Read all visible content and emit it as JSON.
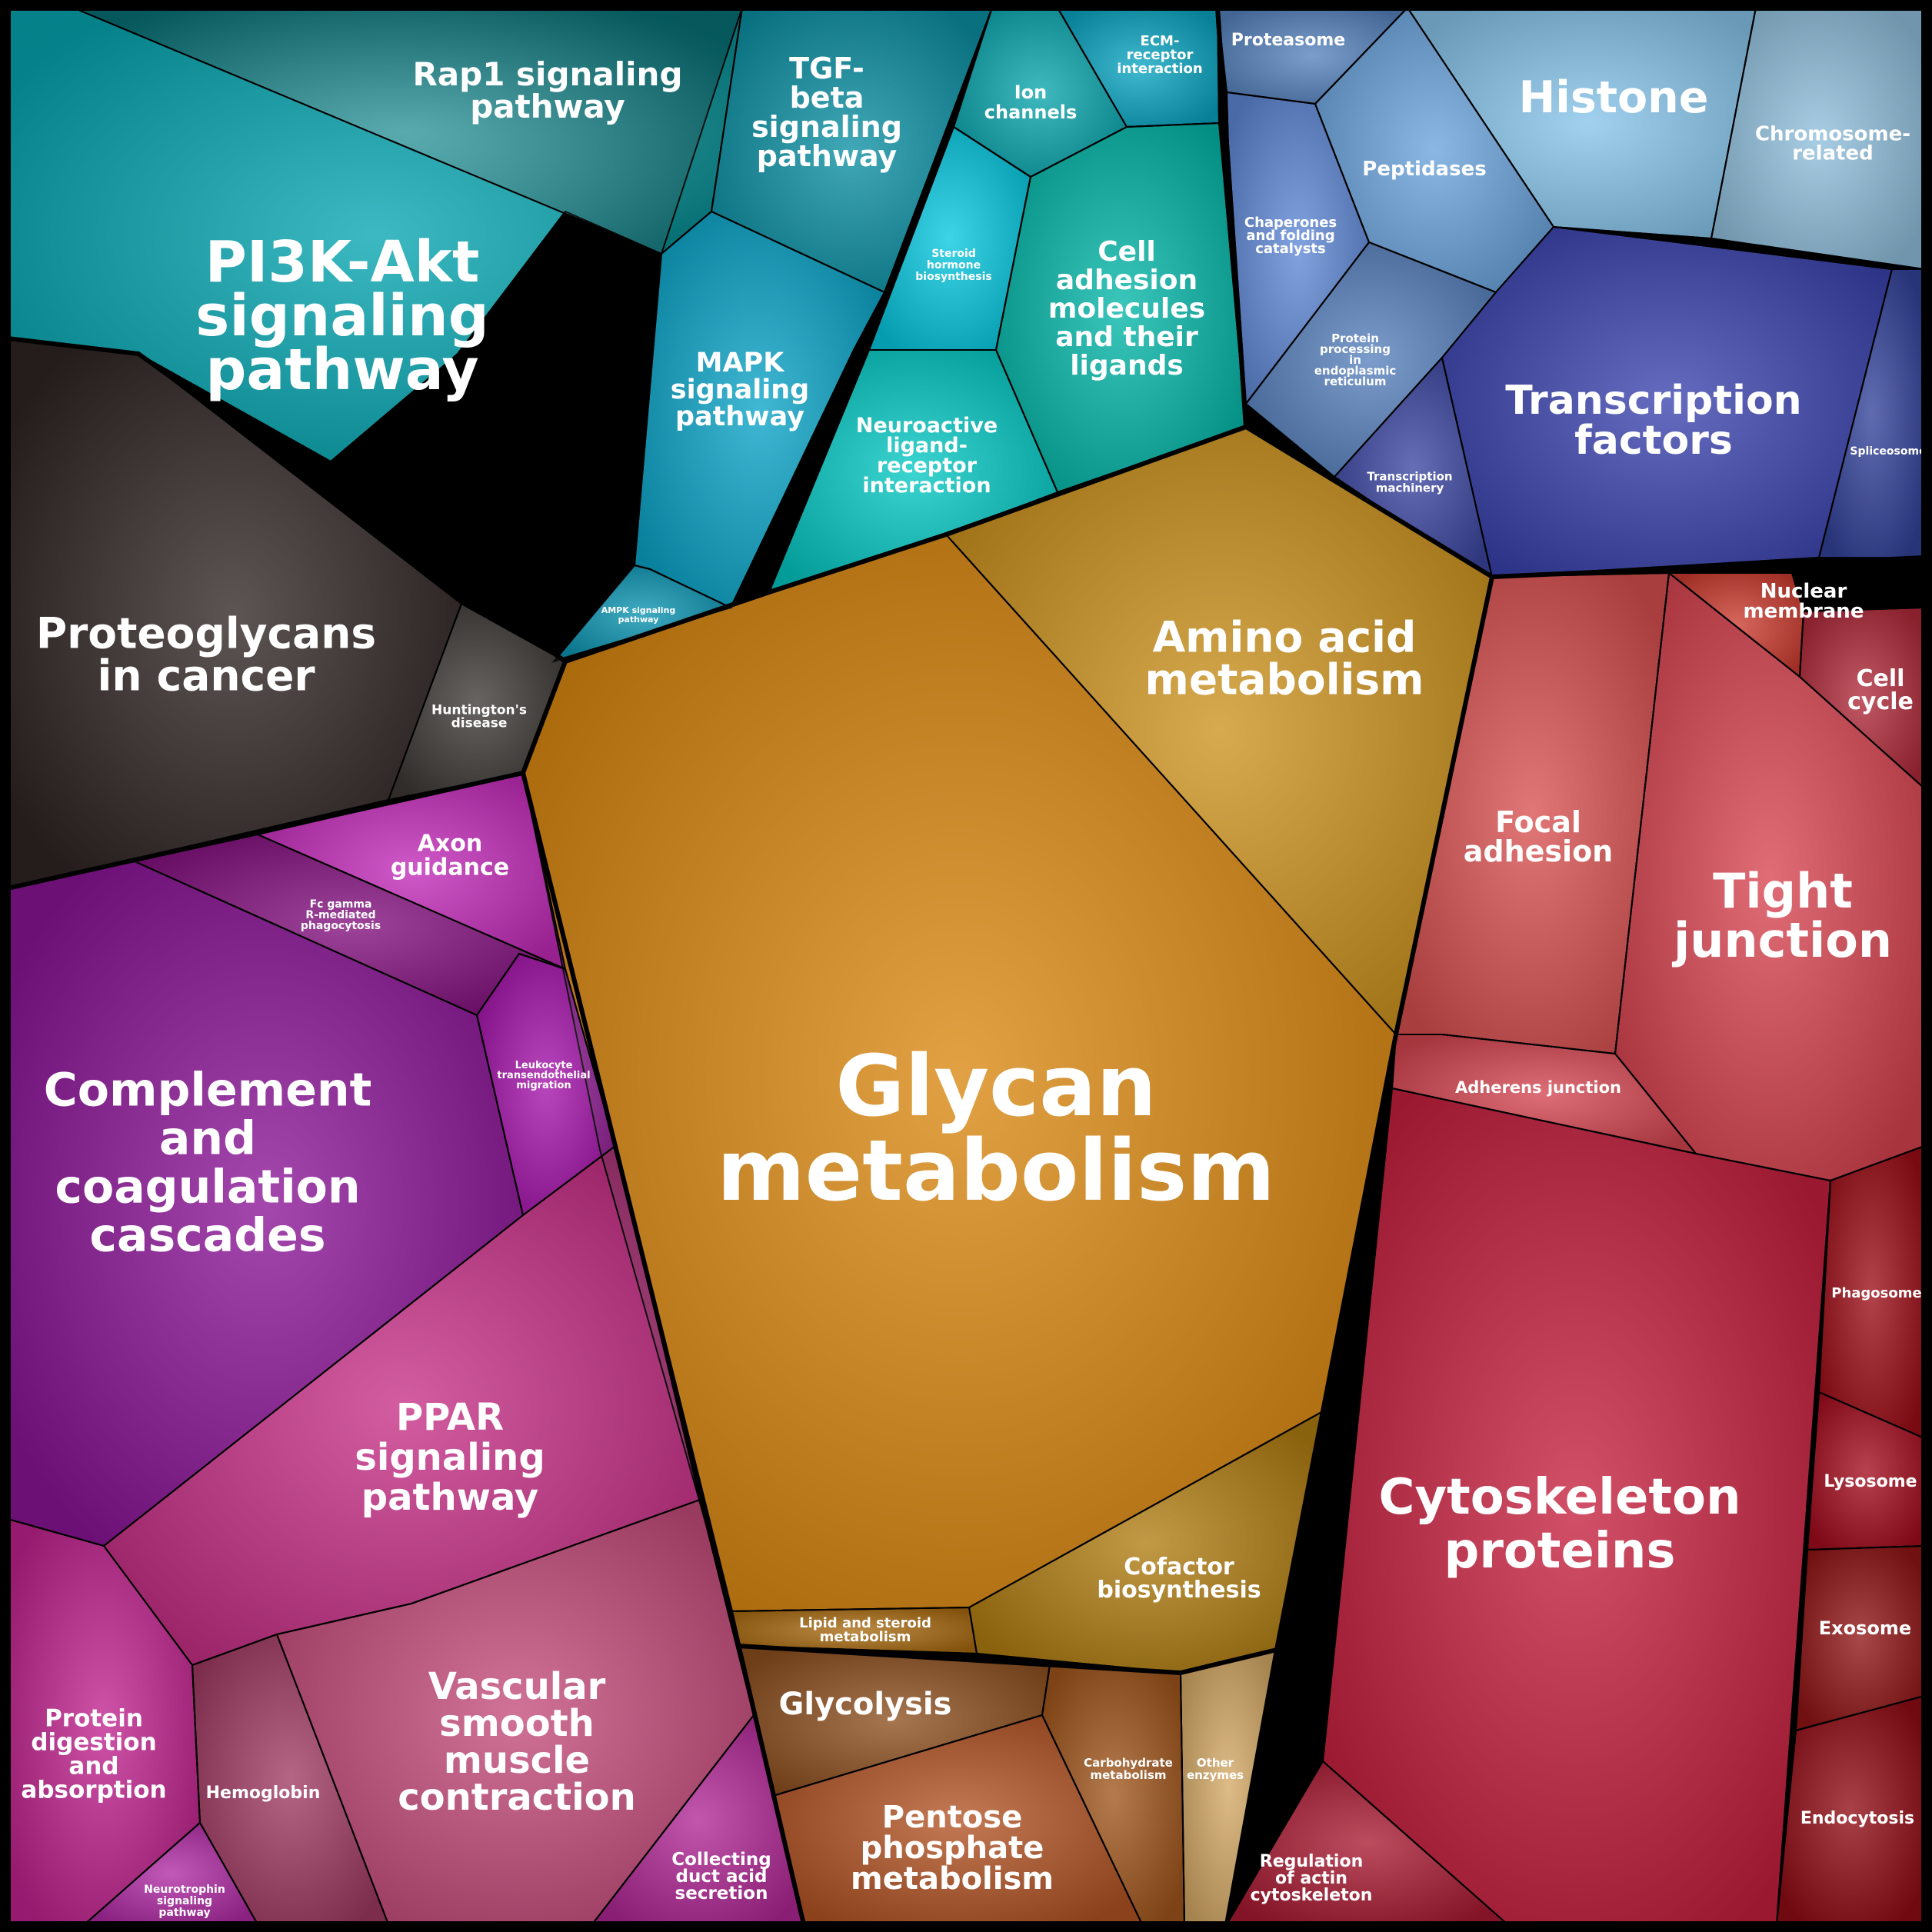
{
  "cells": [
    {
      "label": "PI3K-Akt\nsignaling\npathway",
      "color": "#05a5b0"
    },
    {
      "label": "Rap1 signaling\npathway",
      "color": "#088f95"
    },
    {
      "label": "TGF-\nbeta\nsignaling\npathway",
      "color": "#0b8fa3"
    },
    {
      "label": "MAPK\nsignaling\npathway",
      "color": "#0aa3c7"
    },
    {
      "label": "AMPK signaling\npathway",
      "color": "#0a93b0"
    },
    {
      "label": "Ion\nchannels",
      "color": "#0aa5ad"
    },
    {
      "label": "ECM-\nreceptor\ninteraction",
      "color": "#0aa5c2"
    },
    {
      "label": "Steroid\nhormone\nbiosynthesis",
      "color": "#06c8e0"
    },
    {
      "label": "Cell\nadhesion\nmolecules\nand their\nligands",
      "color": "#04b6a8"
    },
    {
      "label": "Neuroactive\nligand-\nreceptor\ninteraction",
      "color": "#05c8c4"
    },
    {
      "label": "Proteoglycans\nin cancer",
      "color": "#2f2523"
    },
    {
      "label": "Huntington's\ndisease",
      "color": "#3d3835"
    },
    {
      "label": "Proteasome",
      "color": "#5582bd"
    },
    {
      "label": "Histone",
      "color": "#86c4ea"
    },
    {
      "label": "Chromosome-\nrelated",
      "color": "#8fbfdc"
    },
    {
      "label": "Chaperones\nand folding\ncatalysts",
      "color": "#5f88d6"
    },
    {
      "label": "Peptidases",
      "color": "#6aa3dc"
    },
    {
      "label": "Protein\nprocessing\nin\nendoplasmic\nreticulum",
      "color": "#5781bd"
    },
    {
      "label": "Transcription\nmachinery",
      "color": "#3b45a0"
    },
    {
      "label": "Transcription\nfactors",
      "color": "#3a43ae"
    },
    {
      "label": "Spliceosome",
      "color": "#33429a"
    },
    {
      "label": "Glycan\nmetabolism",
      "color": "#d9870f"
    },
    {
      "label": "Amino acid\nmetabolism",
      "color": "#cc921d"
    },
    {
      "label": "Cofactor\nbiosynthesis",
      "color": "#b07d12"
    },
    {
      "label": "Lipid and steroid\nmetabolism",
      "color": "#a86a10"
    },
    {
      "label": "Glycolysis",
      "color": "#8c4f1e"
    },
    {
      "label": "Carbohydrate\nmetabolism",
      "color": "#a0561c"
    },
    {
      "label": "Other\nenzymes",
      "color": "#d5a966"
    },
    {
      "label": "Pentose\nphosphate\nmetabolism",
      "color": "#b25424"
    },
    {
      "label": "Axon\nguidance",
      "color": "#c32ab9"
    },
    {
      "label": "Fc gamma\nR-mediated\nphagocytosis",
      "color": "#82107e"
    },
    {
      "label": "Leukocyte\ntransendothelial\nmigration",
      "color": "#a412a9"
    },
    {
      "label": "Complement\nand\ncoagulation\ncascades",
      "color": "#8a1497"
    },
    {
      "label": "PPAR\nsignaling\npathway",
      "color": "#c72f86"
    },
    {
      "label": "Protein\ndigestion\nand\nabsorption",
      "color": "#c0238f"
    },
    {
      "label": "Hemoglobin",
      "color": "#a03a62"
    },
    {
      "label": "Vascular\nsmooth\nmuscle\ncontraction",
      "color": "#c44a7a"
    },
    {
      "label": "Neurotrophin\nsignaling\npathway",
      "color": "#b02aa5"
    },
    {
      "label": "Collecting\nduct acid\nsecretion",
      "color": "#b02795"
    },
    {
      "label": "Focal\nadhesion",
      "color": "#d95050"
    },
    {
      "label": "Nuclear\nmembrane",
      "color": "#cc3c30"
    },
    {
      "label": "Cell\ncycle",
      "color": "#b02a3a"
    },
    {
      "label": "Tight\njunction",
      "color": "#d84350"
    },
    {
      "label": "Adherens junction",
      "color": "#d44550"
    },
    {
      "label": "Cytoskeleton\nproteins",
      "color": "#c51f3d"
    },
    {
      "label": "Phagosome",
      "color": "#9c0d16"
    },
    {
      "label": "Lysosome",
      "color": "#a30c1d"
    },
    {
      "label": "Exosome",
      "color": "#8f1414"
    },
    {
      "label": "Endocytosis",
      "color": "#900c14"
    },
    {
      "label": "Regulation\nof actin\ncytoskeleton",
      "color": "#a81a32"
    }
  ]
}
